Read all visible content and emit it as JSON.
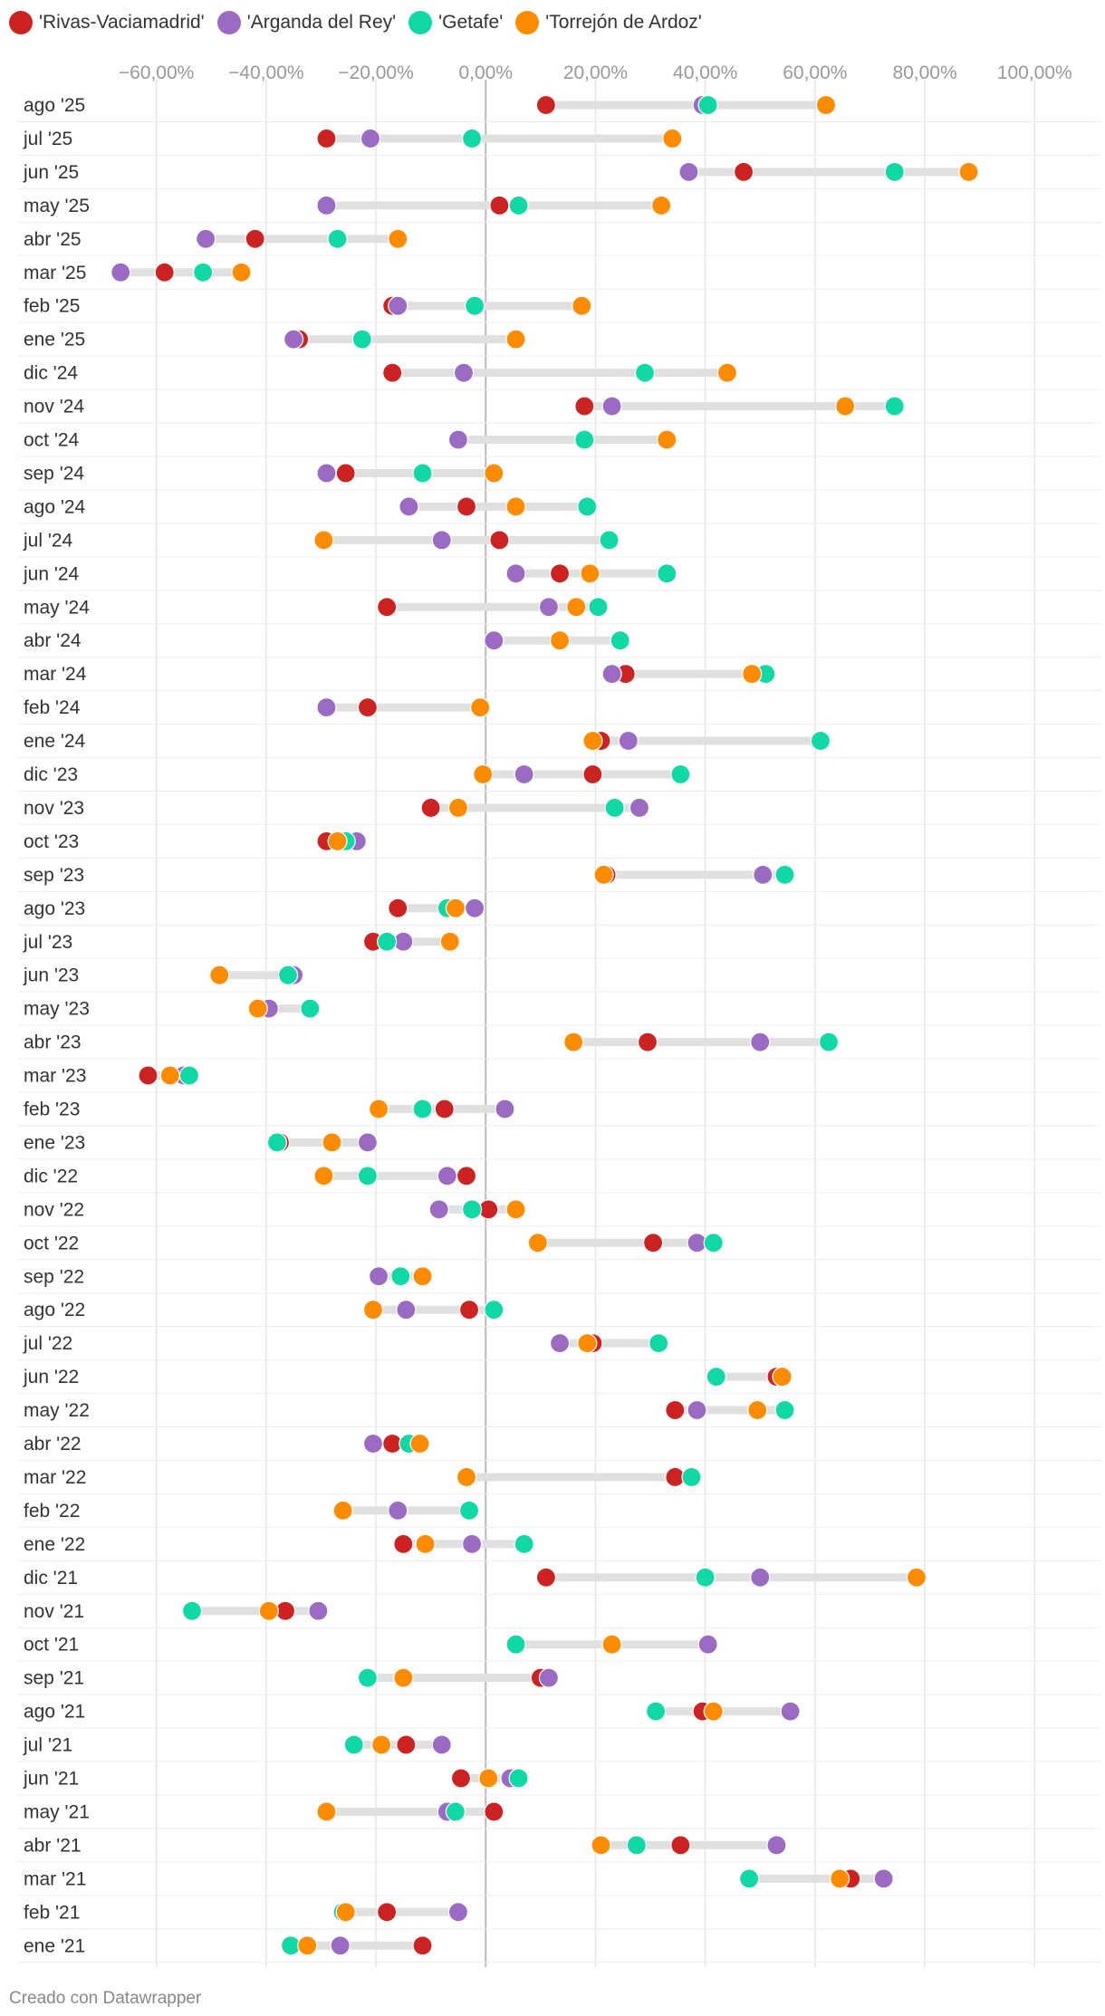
{
  "chart_data": {
    "type": "dot_range",
    "series": [
      {
        "name": "'Rivas-Vaciamadrid'",
        "color": "#cc2222"
      },
      {
        "name": "'Arganda del Rey'",
        "color": "#9b6bc4"
      },
      {
        "name": "'Getafe'",
        "color": "#11d9a6"
      },
      {
        "name": "'Torrejón de Ardoz'",
        "color": "#ff8c00"
      }
    ],
    "x_ticks": [
      -60,
      -40,
      -20,
      0,
      20,
      40,
      60,
      80,
      100
    ],
    "x_tick_labels": [
      "−60,00%",
      "−40,00%",
      "−20,00%",
      "0,00%",
      "20,00%",
      "40,00%",
      "60,00%",
      "80,00%",
      "100,00%"
    ],
    "xlim": [
      -70,
      112
    ],
    "grid": true,
    "legend_position": "top-left",
    "rows": [
      {
        "label": "ago '25",
        "values": [
          11,
          39.5,
          40.5,
          62
        ]
      },
      {
        "label": "jul '25",
        "values": [
          -29,
          -21,
          -2.5,
          34
        ]
      },
      {
        "label": "jun '25",
        "values": [
          47,
          37,
          74.5,
          88
        ]
      },
      {
        "label": "may '25",
        "values": [
          2.5,
          -29,
          6,
          32
        ]
      },
      {
        "label": "abr '25",
        "values": [
          -42,
          -51,
          -27,
          -16
        ]
      },
      {
        "label": "mar '25",
        "values": [
          -58.5,
          -66.5,
          -51.5,
          -44.5
        ]
      },
      {
        "label": "feb '25",
        "values": [
          -17,
          -16,
          -2,
          17.5
        ]
      },
      {
        "label": "ene '25",
        "values": [
          -34,
          -35,
          -22.5,
          5.5
        ]
      },
      {
        "label": "dic '24",
        "values": [
          -17,
          -4,
          29,
          44
        ]
      },
      {
        "label": "nov '24",
        "values": [
          18,
          23,
          74.5,
          65.5
        ]
      },
      {
        "label": "oct '24",
        "values": [
          -5,
          -5,
          18,
          33
        ]
      },
      {
        "label": "sep '24",
        "values": [
          -25.5,
          -29,
          -11.5,
          1.5
        ]
      },
      {
        "label": "ago '24",
        "values": [
          -3.5,
          -14,
          18.5,
          5.5
        ]
      },
      {
        "label": "jul '24",
        "values": [
          2.5,
          -8,
          22.5,
          -29.5
        ]
      },
      {
        "label": "jun '24",
        "values": [
          13.5,
          5.5,
          33,
          19
        ]
      },
      {
        "label": "may '24",
        "values": [
          -18,
          11.5,
          20.5,
          16.5
        ]
      },
      {
        "label": "abr '24",
        "values": [
          1.5,
          1.5,
          24.5,
          13.5
        ]
      },
      {
        "label": "mar '24",
        "values": [
          25.5,
          23,
          51,
          48.5
        ]
      },
      {
        "label": "feb '24",
        "values": [
          -21.5,
          -29,
          -1,
          -1
        ]
      },
      {
        "label": "ene '24",
        "values": [
          21,
          26,
          61,
          19.5
        ]
      },
      {
        "label": "dic '23",
        "values": [
          19.5,
          7,
          35.5,
          -0.5
        ]
      },
      {
        "label": "nov '23",
        "values": [
          -10,
          28,
          23.5,
          -5
        ]
      },
      {
        "label": "oct '23",
        "values": [
          -29,
          -23.5,
          -25.5,
          -27
        ]
      },
      {
        "label": "sep '23",
        "values": [
          22,
          50.5,
          54.5,
          21.5
        ]
      },
      {
        "label": "ago '23",
        "values": [
          -16,
          -2,
          -7,
          -5.5
        ]
      },
      {
        "label": "jul '23",
        "values": [
          -20.5,
          -15,
          -18,
          -6.5
        ]
      },
      {
        "label": "jun '23",
        "values": [
          -48.5,
          -35,
          -36,
          -48.5
        ]
      },
      {
        "label": "may '23",
        "values": [
          -41,
          -39.5,
          -32,
          -41.5
        ]
      },
      {
        "label": "abr '23",
        "values": [
          29.5,
          50,
          62.5,
          16
        ]
      },
      {
        "label": "mar '23",
        "values": [
          -61.5,
          -55,
          -54,
          -57.5
        ]
      },
      {
        "label": "feb '23",
        "values": [
          -7.5,
          3.5,
          -11.5,
          -19.5
        ]
      },
      {
        "label": "ene '23",
        "values": [
          -37.5,
          -21.5,
          -38,
          -28
        ]
      },
      {
        "label": "dic '22",
        "values": [
          -3.5,
          -7,
          -21.5,
          -29.5
        ]
      },
      {
        "label": "nov '22",
        "values": [
          0.5,
          -8.5,
          -2.5,
          5.5
        ]
      },
      {
        "label": "oct '22",
        "values": [
          30.5,
          38.5,
          41.5,
          9.5
        ]
      },
      {
        "label": "sep '22",
        "values": [
          -11.5,
          -19.5,
          -15.5,
          -11.5
        ]
      },
      {
        "label": "ago '22",
        "values": [
          -3,
          -14.5,
          1.5,
          -20.5
        ]
      },
      {
        "label": "jul '22",
        "values": [
          19.5,
          13.5,
          31.5,
          18.5
        ]
      },
      {
        "label": "jun '22",
        "values": [
          53,
          42,
          42,
          54
        ]
      },
      {
        "label": "may '22",
        "values": [
          34.5,
          38.5,
          54.5,
          49.5
        ]
      },
      {
        "label": "abr '22",
        "values": [
          -17,
          -20.5,
          -14,
          -12
        ]
      },
      {
        "label": "mar '22",
        "values": [
          34.5,
          -3.5,
          37.5,
          -3.5
        ]
      },
      {
        "label": "feb '22",
        "values": [
          -16,
          -16,
          -3,
          -26
        ]
      },
      {
        "label": "ene '22",
        "values": [
          -15,
          -2.5,
          7,
          -11
        ]
      },
      {
        "label": "dic '21",
        "values": [
          11,
          50,
          40,
          78.5
        ]
      },
      {
        "label": "nov '21",
        "values": [
          -36.5,
          -30.5,
          -53.5,
          -39.5
        ]
      },
      {
        "label": "oct '21",
        "values": [
          5.5,
          40.5,
          5.5,
          23
        ]
      },
      {
        "label": "sep '21",
        "values": [
          10,
          11.5,
          -21.5,
          -15
        ]
      },
      {
        "label": "ago '21",
        "values": [
          39.5,
          55.5,
          31,
          41.5
        ]
      },
      {
        "label": "jul '21",
        "values": [
          -14.5,
          -8,
          -24,
          -19
        ]
      },
      {
        "label": "jun '21",
        "values": [
          -4.5,
          4.5,
          6,
          0.5
        ]
      },
      {
        "label": "may '21",
        "values": [
          1.5,
          -7,
          -5.5,
          -29
        ]
      },
      {
        "label": "abr '21",
        "values": [
          35.5,
          53,
          27.5,
          21
        ]
      },
      {
        "label": "mar '21",
        "values": [
          66.5,
          72.5,
          48,
          64.5
        ]
      },
      {
        "label": "feb '21",
        "values": [
          -18,
          -5,
          -26,
          -25.5
        ]
      },
      {
        "label": "ene '21",
        "values": [
          -11.5,
          -26.5,
          -35.5,
          -32.5
        ]
      }
    ]
  },
  "footer": {
    "credit": "Creado con Datawrapper"
  }
}
